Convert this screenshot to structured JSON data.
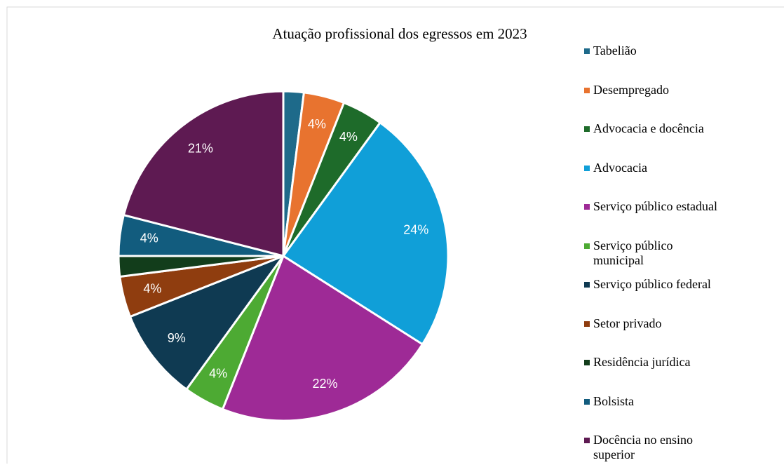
{
  "chart_data": {
    "type": "pie",
    "title": "Atuação profissional dos egressos em 2023",
    "categories": [
      "Tabelião",
      "Desempregado",
      "Advocacia e docência",
      "Advocacia",
      "Serviço público estadual",
      "Serviço público municipal",
      "Serviço público federal",
      "Setor privado",
      "Residência jurídica",
      "Bolsista",
      "Docência no ensino superior"
    ],
    "values": [
      2,
      4,
      4,
      24,
      22,
      4,
      9,
      4,
      2,
      4,
      21
    ],
    "value_labels": [
      null,
      "4%",
      "4%",
      "24%",
      "22%",
      "4%",
      "9%",
      "4%",
      null,
      "4%",
      "21%"
    ],
    "colors": [
      "#1e6a8a",
      "#e8732f",
      "#1e6b2a",
      "#109fd8",
      "#9e2a96",
      "#4daa33",
      "#0f3a52",
      "#8f3d0f",
      "#123d1b",
      "#125c7e",
      "#5e1a52"
    ],
    "legend": "right"
  }
}
